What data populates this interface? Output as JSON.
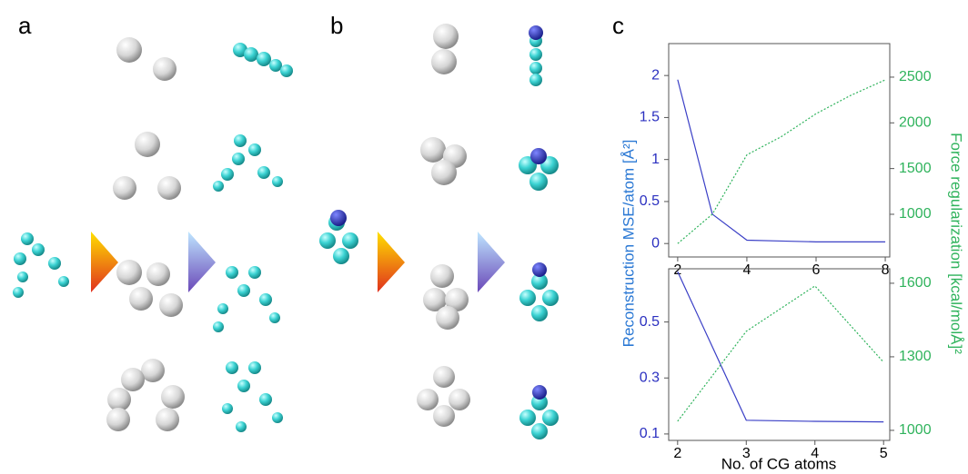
{
  "panel_labels": [
    "a",
    "b",
    "c"
  ],
  "panel_c": {
    "xlabel": "No. of CG atoms",
    "ylabel": "Reconstruction MSE/atom [Å²]",
    "y2label": "Force regularization [kcal/molÅ]²"
  },
  "chart_data": [
    {
      "type": "line",
      "x": [
        2,
        3,
        4,
        5,
        6,
        7,
        8
      ],
      "xlim": [
        1.74,
        8.13
      ],
      "xticks": [
        2,
        4,
        6,
        8
      ],
      "ylim": [
        -0.16,
        2.38
      ],
      "yticks": [
        0,
        0.5,
        1,
        1.5,
        2
      ],
      "y2lim": [
        533,
        2867
      ],
      "y2ticks": [
        1000,
        1500,
        2000,
        2500
      ],
      "series": [
        {
          "color": "#3a3fc6",
          "values": [
            1.95,
            0.35,
            0.04,
            0.03,
            0.02,
            0.02,
            0.02
          ]
        },
        {
          "color": "#2fb35c",
          "axis": "y2",
          "dashed": true,
          "values": [
            680,
            1000,
            1650,
            1850,
            2100,
            2300,
            2470
          ]
        }
      ]
    },
    {
      "type": "line",
      "x": [
        2,
        3,
        4,
        5
      ],
      "xlim": [
        1.87,
        5.09
      ],
      "xticks": [
        2,
        3,
        4,
        5
      ],
      "ylim": [
        0.077,
        0.69
      ],
      "yticks": [
        0.1,
        0.3,
        0.5
      ],
      "y2lim": [
        959,
        1659
      ],
      "y2ticks": [
        1000,
        1300,
        1600
      ],
      "series": [
        {
          "color": "#3a3fc6",
          "values": [
            0.68,
            0.149,
            0.145,
            0.143
          ]
        },
        {
          "color": "#2fb35c",
          "axis": "y2",
          "dashed": true,
          "values": [
            1037,
            1404,
            1589,
            1278
          ]
        }
      ]
    }
  ]
}
